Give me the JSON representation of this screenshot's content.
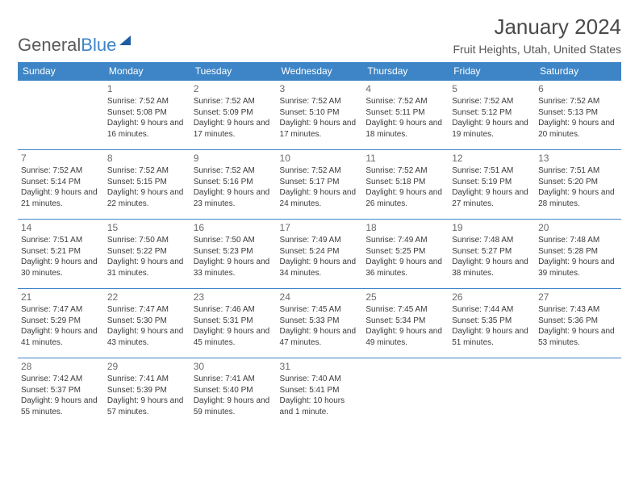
{
  "logo": {
    "part1": "General",
    "part2": "Blue"
  },
  "title": "January 2024",
  "subtitle": "Fruit Heights, Utah, United States",
  "colors": {
    "header_bg": "#3d85c6",
    "header_fg": "#ffffff",
    "border": "#3d85c6",
    "text": "#3a3a3a",
    "daynum": "#6b6b6b",
    "title": "#4a4a4a",
    "page_bg": "#ffffff"
  },
  "day_headers": [
    "Sunday",
    "Monday",
    "Tuesday",
    "Wednesday",
    "Thursday",
    "Friday",
    "Saturday"
  ],
  "cells": [
    {
      "day": "",
      "sunrise": "",
      "sunset": "",
      "daylight": ""
    },
    {
      "day": "1",
      "sunrise": "Sunrise: 7:52 AM",
      "sunset": "Sunset: 5:08 PM",
      "daylight": "Daylight: 9 hours and 16 minutes."
    },
    {
      "day": "2",
      "sunrise": "Sunrise: 7:52 AM",
      "sunset": "Sunset: 5:09 PM",
      "daylight": "Daylight: 9 hours and 17 minutes."
    },
    {
      "day": "3",
      "sunrise": "Sunrise: 7:52 AM",
      "sunset": "Sunset: 5:10 PM",
      "daylight": "Daylight: 9 hours and 17 minutes."
    },
    {
      "day": "4",
      "sunrise": "Sunrise: 7:52 AM",
      "sunset": "Sunset: 5:11 PM",
      "daylight": "Daylight: 9 hours and 18 minutes."
    },
    {
      "day": "5",
      "sunrise": "Sunrise: 7:52 AM",
      "sunset": "Sunset: 5:12 PM",
      "daylight": "Daylight: 9 hours and 19 minutes."
    },
    {
      "day": "6",
      "sunrise": "Sunrise: 7:52 AM",
      "sunset": "Sunset: 5:13 PM",
      "daylight": "Daylight: 9 hours and 20 minutes."
    },
    {
      "day": "7",
      "sunrise": "Sunrise: 7:52 AM",
      "sunset": "Sunset: 5:14 PM",
      "daylight": "Daylight: 9 hours and 21 minutes."
    },
    {
      "day": "8",
      "sunrise": "Sunrise: 7:52 AM",
      "sunset": "Sunset: 5:15 PM",
      "daylight": "Daylight: 9 hours and 22 minutes."
    },
    {
      "day": "9",
      "sunrise": "Sunrise: 7:52 AM",
      "sunset": "Sunset: 5:16 PM",
      "daylight": "Daylight: 9 hours and 23 minutes."
    },
    {
      "day": "10",
      "sunrise": "Sunrise: 7:52 AM",
      "sunset": "Sunset: 5:17 PM",
      "daylight": "Daylight: 9 hours and 24 minutes."
    },
    {
      "day": "11",
      "sunrise": "Sunrise: 7:52 AM",
      "sunset": "Sunset: 5:18 PM",
      "daylight": "Daylight: 9 hours and 26 minutes."
    },
    {
      "day": "12",
      "sunrise": "Sunrise: 7:51 AM",
      "sunset": "Sunset: 5:19 PM",
      "daylight": "Daylight: 9 hours and 27 minutes."
    },
    {
      "day": "13",
      "sunrise": "Sunrise: 7:51 AM",
      "sunset": "Sunset: 5:20 PM",
      "daylight": "Daylight: 9 hours and 28 minutes."
    },
    {
      "day": "14",
      "sunrise": "Sunrise: 7:51 AM",
      "sunset": "Sunset: 5:21 PM",
      "daylight": "Daylight: 9 hours and 30 minutes."
    },
    {
      "day": "15",
      "sunrise": "Sunrise: 7:50 AM",
      "sunset": "Sunset: 5:22 PM",
      "daylight": "Daylight: 9 hours and 31 minutes."
    },
    {
      "day": "16",
      "sunrise": "Sunrise: 7:50 AM",
      "sunset": "Sunset: 5:23 PM",
      "daylight": "Daylight: 9 hours and 33 minutes."
    },
    {
      "day": "17",
      "sunrise": "Sunrise: 7:49 AM",
      "sunset": "Sunset: 5:24 PM",
      "daylight": "Daylight: 9 hours and 34 minutes."
    },
    {
      "day": "18",
      "sunrise": "Sunrise: 7:49 AM",
      "sunset": "Sunset: 5:25 PM",
      "daylight": "Daylight: 9 hours and 36 minutes."
    },
    {
      "day": "19",
      "sunrise": "Sunrise: 7:48 AM",
      "sunset": "Sunset: 5:27 PM",
      "daylight": "Daylight: 9 hours and 38 minutes."
    },
    {
      "day": "20",
      "sunrise": "Sunrise: 7:48 AM",
      "sunset": "Sunset: 5:28 PM",
      "daylight": "Daylight: 9 hours and 39 minutes."
    },
    {
      "day": "21",
      "sunrise": "Sunrise: 7:47 AM",
      "sunset": "Sunset: 5:29 PM",
      "daylight": "Daylight: 9 hours and 41 minutes."
    },
    {
      "day": "22",
      "sunrise": "Sunrise: 7:47 AM",
      "sunset": "Sunset: 5:30 PM",
      "daylight": "Daylight: 9 hours and 43 minutes."
    },
    {
      "day": "23",
      "sunrise": "Sunrise: 7:46 AM",
      "sunset": "Sunset: 5:31 PM",
      "daylight": "Daylight: 9 hours and 45 minutes."
    },
    {
      "day": "24",
      "sunrise": "Sunrise: 7:45 AM",
      "sunset": "Sunset: 5:33 PM",
      "daylight": "Daylight: 9 hours and 47 minutes."
    },
    {
      "day": "25",
      "sunrise": "Sunrise: 7:45 AM",
      "sunset": "Sunset: 5:34 PM",
      "daylight": "Daylight: 9 hours and 49 minutes."
    },
    {
      "day": "26",
      "sunrise": "Sunrise: 7:44 AM",
      "sunset": "Sunset: 5:35 PM",
      "daylight": "Daylight: 9 hours and 51 minutes."
    },
    {
      "day": "27",
      "sunrise": "Sunrise: 7:43 AM",
      "sunset": "Sunset: 5:36 PM",
      "daylight": "Daylight: 9 hours and 53 minutes."
    },
    {
      "day": "28",
      "sunrise": "Sunrise: 7:42 AM",
      "sunset": "Sunset: 5:37 PM",
      "daylight": "Daylight: 9 hours and 55 minutes."
    },
    {
      "day": "29",
      "sunrise": "Sunrise: 7:41 AM",
      "sunset": "Sunset: 5:39 PM",
      "daylight": "Daylight: 9 hours and 57 minutes."
    },
    {
      "day": "30",
      "sunrise": "Sunrise: 7:41 AM",
      "sunset": "Sunset: 5:40 PM",
      "daylight": "Daylight: 9 hours and 59 minutes."
    },
    {
      "day": "31",
      "sunrise": "Sunrise: 7:40 AM",
      "sunset": "Sunset: 5:41 PM",
      "daylight": "Daylight: 10 hours and 1 minute."
    },
    {
      "day": "",
      "sunrise": "",
      "sunset": "",
      "daylight": ""
    },
    {
      "day": "",
      "sunrise": "",
      "sunset": "",
      "daylight": ""
    },
    {
      "day": "",
      "sunrise": "",
      "sunset": "",
      "daylight": ""
    }
  ]
}
